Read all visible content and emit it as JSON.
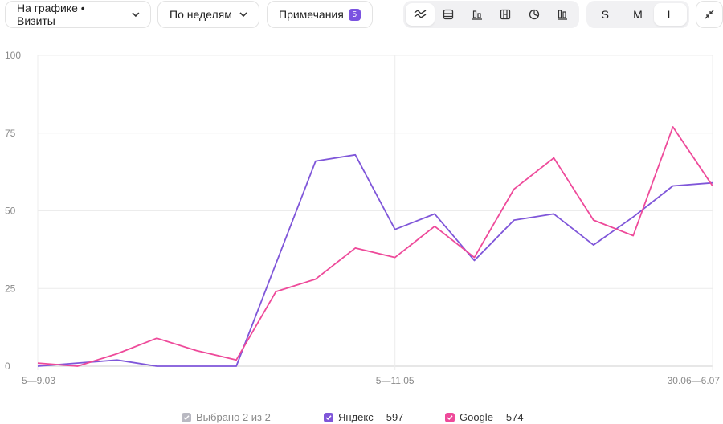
{
  "toolbar": {
    "metric_dropdown": "На графике • Визиты",
    "period_dropdown": "По неделям",
    "notes_label": "Примечания",
    "notes_count": "5",
    "chart_type_icons": [
      "line-chart-icon",
      "stacked-area-icon",
      "bar-chart-icon",
      "stacked-bar-icon",
      "pie-chart-icon",
      "column-chart-icon"
    ],
    "active_chart_type": "line",
    "sizes": [
      "S",
      "M",
      "L"
    ],
    "active_size": "L"
  },
  "legend": {
    "selected_label": "Выбрано 2 из 2",
    "items": [
      {
        "name": "Яндекс",
        "total": "597",
        "color": "#7f56d9"
      },
      {
        "name": "Google",
        "total": "574",
        "color": "#ee4a9a"
      }
    ]
  },
  "chart_data": {
    "type": "line",
    "x_tick_labels": [
      "5—9.03",
      "5—11.05",
      "30.06—6.07"
    ],
    "y_ticks": [
      0,
      25,
      50,
      75,
      100
    ],
    "ylim": [
      0,
      100
    ],
    "grid": true,
    "points_count": 18,
    "series": [
      {
        "name": "Яндекс",
        "color": "#7f56d9",
        "values": [
          0,
          1,
          2,
          0,
          0,
          0,
          33,
          66,
          68,
          44,
          49,
          34,
          47,
          49,
          39,
          48,
          58,
          59
        ]
      },
      {
        "name": "Google",
        "color": "#ee4a9a",
        "values": [
          1,
          0,
          4,
          9,
          5,
          2,
          24,
          28,
          38,
          35,
          45,
          35,
          57,
          67,
          47,
          42,
          77,
          58
        ]
      }
    ]
  }
}
